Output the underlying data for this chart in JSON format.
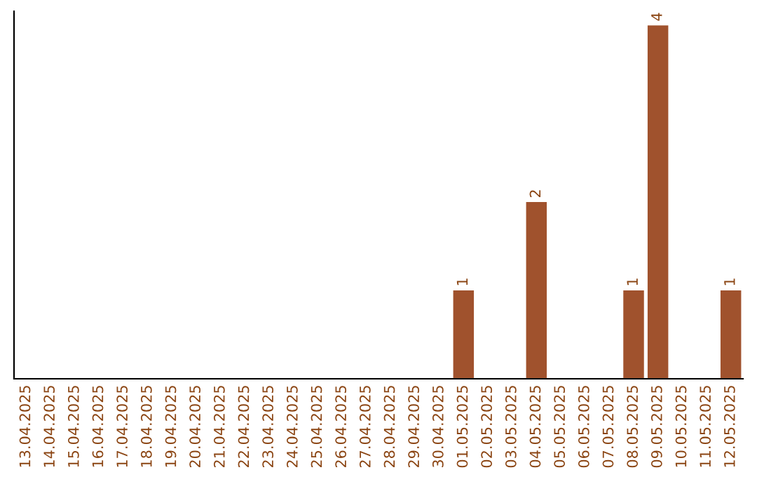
{
  "chart_data": {
    "type": "bar",
    "categories": [
      "13.04.2025",
      "14.04.2025",
      "15.04.2025",
      "16.04.2025",
      "17.04.2025",
      "18.04.2025",
      "19.04.2025",
      "20.04.2025",
      "21.04.2025",
      "22.04.2025",
      "23.04.2025",
      "24.04.2025",
      "25.04.2025",
      "26.04.2025",
      "27.04.2025",
      "28.04.2025",
      "29.04.2025",
      "30.04.2025",
      "01.05.2025",
      "02.05.2025",
      "03.05.2025",
      "04.05.2025",
      "05.05.2025",
      "06.05.2025",
      "07.05.2025",
      "08.05.2025",
      "09.05.2025",
      "10.05.2025",
      "11.05.2025",
      "12.05.2025"
    ],
    "values": [
      null,
      null,
      null,
      null,
      null,
      null,
      null,
      null,
      null,
      null,
      null,
      null,
      null,
      null,
      null,
      null,
      null,
      null,
      1,
      null,
      null,
      2,
      null,
      null,
      null,
      1,
      4,
      null,
      null,
      1
    ],
    "value_labels": [
      null,
      null,
      null,
      null,
      null,
      null,
      null,
      null,
      null,
      null,
      null,
      null,
      null,
      null,
      null,
      null,
      null,
      null,
      "1",
      null,
      null,
      "2",
      null,
      null,
      null,
      "1",
      "4",
      null,
      null,
      "1"
    ],
    "color": "#a0522d",
    "tick_labels": "x",
    "grid": false,
    "legend": false
  }
}
